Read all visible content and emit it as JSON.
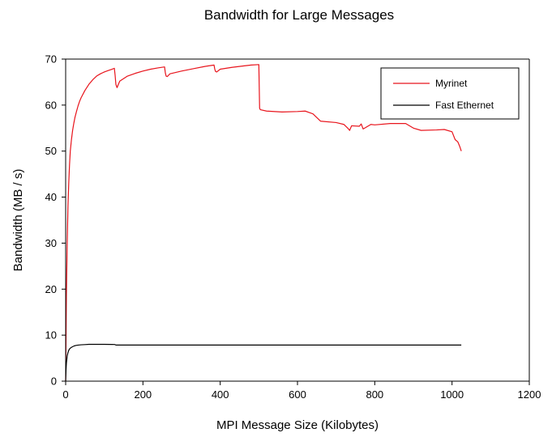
{
  "chart_data": {
    "type": "line",
    "title": "Bandwidth for Large Messages",
    "xlabel": "MPI Message Size (Kilobytes)",
    "ylabel": "Bandwidth (MB / s)",
    "xlim": [
      0,
      1200
    ],
    "ylim": [
      0,
      70
    ],
    "xticks": [
      "0",
      "200",
      "400",
      "600",
      "800",
      "1000",
      "1200"
    ],
    "yticks": [
      "0",
      "10",
      "20",
      "30",
      "40",
      "50",
      "60",
      "70"
    ],
    "grid": false,
    "legend_position": "top-right",
    "series": [
      {
        "name": "Myrinet",
        "color": "#e8141c",
        "x": [
          0,
          2,
          4,
          6,
          8,
          10,
          12,
          15,
          18,
          21,
          24,
          28,
          32,
          36,
          40,
          50,
          60,
          70,
          80,
          90,
          100,
          110,
          120,
          126,
          128,
          130,
          133,
          140,
          160,
          180,
          200,
          220,
          240,
          256,
          258,
          260,
          263,
          270,
          300,
          330,
          360,
          384,
          386,
          388,
          391,
          400,
          430,
          460,
          480,
          500,
          502,
          504,
          520,
          560,
          600,
          620,
          640,
          660,
          700,
          720,
          730,
          735,
          740,
          760,
          765,
          770,
          790,
          800,
          840,
          880,
          900,
          920,
          960,
          980,
          1000,
          1008,
          1015,
          1020,
          1024
        ],
        "y": [
          0,
          19,
          30,
          38,
          43,
          47,
          50,
          52.5,
          54.5,
          56,
          57.3,
          58.6,
          59.8,
          60.8,
          61.6,
          63.2,
          64.5,
          65.5,
          66.3,
          66.8,
          67.2,
          67.5,
          67.8,
          68,
          66.5,
          64.5,
          63.8,
          65.2,
          66.3,
          66.9,
          67.4,
          67.8,
          68.1,
          68.3,
          67,
          66.3,
          66.2,
          66.8,
          67.4,
          67.9,
          68.4,
          68.7,
          67.8,
          67.3,
          67.2,
          67.8,
          68.2,
          68.5,
          68.7,
          68.8,
          59.3,
          59,
          58.7,
          58.5,
          58.6,
          58.7,
          58.1,
          56.5,
          56.2,
          55.8,
          55,
          54.5,
          55.5,
          55.4,
          55.9,
          54.8,
          55.8,
          55.7,
          56,
          56,
          55,
          54.5,
          54.6,
          54.7,
          54.2,
          52.5,
          52,
          51,
          50
        ]
      },
      {
        "name": "Fast Ethernet",
        "color": "#000000",
        "x": [
          0,
          1,
          2,
          4,
          6,
          8,
          10,
          14,
          18,
          22,
          26,
          30,
          40,
          50,
          60,
          80,
          100,
          120,
          127,
          130,
          200,
          300,
          400,
          500,
          600,
          700,
          800,
          900,
          1000,
          1024
        ],
        "y": [
          0,
          2.5,
          4,
          5.5,
          6.2,
          6.7,
          7,
          7.3,
          7.5,
          7.65,
          7.75,
          7.82,
          7.9,
          7.95,
          8,
          8,
          8,
          7.98,
          7.97,
          7.85,
          7.85,
          7.85,
          7.85,
          7.85,
          7.85,
          7.85,
          7.85,
          7.85,
          7.85,
          7.85
        ]
      }
    ]
  }
}
